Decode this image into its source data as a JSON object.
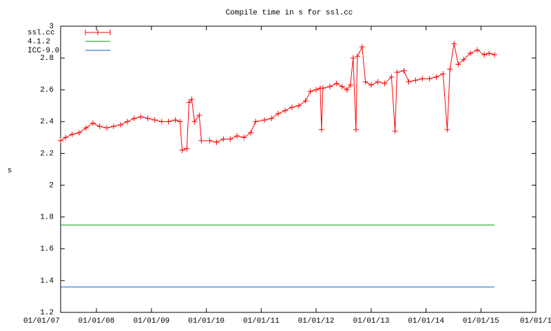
{
  "chart_data": {
    "type": "line",
    "title": "Compile time in s for ssl.cc",
    "y_label": "s",
    "xlim": [
      "2007-05-08",
      "2016-01-01"
    ],
    "xticks": [
      {
        "value": "2007-01-01",
        "label": "01/01/07"
      },
      {
        "value": "2008-01-01",
        "label": "01/01/08"
      },
      {
        "value": "2009-01-01",
        "label": "01/01/09"
      },
      {
        "value": "2010-01-01",
        "label": "01/01/10"
      },
      {
        "value": "2011-01-01",
        "label": "01/01/11"
      },
      {
        "value": "2012-01-01",
        "label": "01/01/12"
      },
      {
        "value": "2013-01-01",
        "label": "01/01/13"
      },
      {
        "value": "2014-01-01",
        "label": "01/01/14"
      },
      {
        "value": "2015-01-01",
        "label": "01/01/15"
      },
      {
        "value": "2016-01-01",
        "label": "01/01/1"
      }
    ],
    "ylim": [
      1.2,
      3
    ],
    "yticks": [
      1.2,
      1.4,
      1.6,
      1.8,
      2,
      2.2,
      2.4,
      2.6,
      2.8,
      3
    ],
    "grid": false,
    "legend_position": "top-left",
    "series": [
      {
        "name": "ssl.cc",
        "color": "#ff0000",
        "markers": true,
        "x": [
          "2007-05-08",
          "2007-06-10",
          "2007-07-24",
          "2007-09-08",
          "2007-10-24",
          "2007-12-09",
          "2008-01-23",
          "2008-03-10",
          "2008-04-24",
          "2008-06-09",
          "2008-07-24",
          "2008-09-08",
          "2008-10-23",
          "2008-12-08",
          "2009-01-23",
          "2009-03-10",
          "2009-04-24",
          "2009-06-09",
          "2009-07-10",
          "2009-07-24",
          "2009-08-24",
          "2009-09-08",
          "2009-09-26",
          "2009-10-14",
          "2009-11-15",
          "2009-11-29",
          "2010-01-23",
          "2010-03-10",
          "2010-04-24",
          "2010-06-09",
          "2010-07-24",
          "2010-09-08",
          "2010-10-23",
          "2010-11-24",
          "2011-01-23",
          "2011-03-10",
          "2011-04-24",
          "2011-06-09",
          "2011-07-24",
          "2011-09-08",
          "2011-10-23",
          "2011-11-24",
          "2012-01-01",
          "2012-01-28",
          "2012-02-06",
          "2012-02-15",
          "2012-04-01",
          "2012-05-16",
          "2012-06-22",
          "2012-07-24",
          "2012-08-16",
          "2012-09-03",
          "2012-09-22",
          "2012-10-01",
          "2012-11-02",
          "2012-11-24",
          "2013-01-01",
          "2013-02-15",
          "2013-04-01",
          "2013-05-16",
          "2013-06-09",
          "2013-06-22",
          "2013-08-07",
          "2013-09-08",
          "2013-10-23",
          "2013-12-08",
          "2014-01-23",
          "2014-03-10",
          "2014-04-24",
          "2014-05-22",
          "2014-06-09",
          "2014-07-06",
          "2014-08-03",
          "2014-09-08",
          "2014-10-23",
          "2014-12-08",
          "2015-01-23",
          "2015-02-24",
          "2015-04-01"
        ],
        "values": [
          2.28,
          2.3,
          2.32,
          2.33,
          2.36,
          2.39,
          2.37,
          2.36,
          2.37,
          2.38,
          2.4,
          2.42,
          2.43,
          2.42,
          2.41,
          2.4,
          2.4,
          2.41,
          2.4,
          2.22,
          2.23,
          2.52,
          2.54,
          2.4,
          2.44,
          2.28,
          2.28,
          2.27,
          2.29,
          2.29,
          2.31,
          2.3,
          2.33,
          2.4,
          2.41,
          2.42,
          2.45,
          2.47,
          2.49,
          2.5,
          2.53,
          2.59,
          2.6,
          2.61,
          2.35,
          2.61,
          2.62,
          2.64,
          2.62,
          2.6,
          2.63,
          2.8,
          2.35,
          2.81,
          2.87,
          2.65,
          2.63,
          2.65,
          2.64,
          2.68,
          2.34,
          2.71,
          2.72,
          2.65,
          2.66,
          2.67,
          2.67,
          2.68,
          2.7,
          2.35,
          2.73,
          2.89,
          2.76,
          2.79,
          2.83,
          2.85,
          2.82,
          2.83,
          2.82
        ]
      },
      {
        "name": "4.1.2",
        "color": "#00a000",
        "markers": false,
        "x": [
          "2007-05-08",
          "2015-04-01"
        ],
        "values": [
          1.75,
          1.75
        ]
      },
      {
        "name": "ICC-9.0",
        "color": "#0060c0",
        "markers": false,
        "x": [
          "2007-05-08",
          "2015-04-01"
        ],
        "values": [
          1.36,
          1.36
        ]
      }
    ]
  }
}
